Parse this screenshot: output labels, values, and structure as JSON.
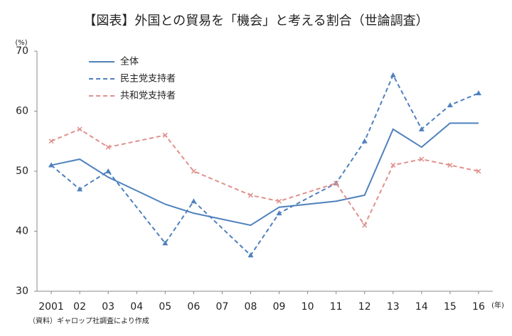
{
  "chart_data": {
    "type": "line",
    "title": "【図表】外国との貿易を「機会」と考える割合（世論調査）",
    "y_unit": "(%)",
    "x_unit": "(年)",
    "source": "（資料）ギャロップ社調査により作成",
    "xlim": [
      2000.5,
      2016.5
    ],
    "xticks": [
      {
        "value": 2001,
        "label": "2001"
      },
      {
        "value": 2002,
        "label": "02"
      },
      {
        "value": 2003,
        "label": "03"
      },
      {
        "value": 2004,
        "label": "04"
      },
      {
        "value": 2005,
        "label": "05"
      },
      {
        "value": 2006,
        "label": "06"
      },
      {
        "value": 2007,
        "label": "07"
      },
      {
        "value": 2008,
        "label": "08"
      },
      {
        "value": 2009,
        "label": "09"
      },
      {
        "value": 2010,
        "label": "10"
      },
      {
        "value": 2011,
        "label": "11"
      },
      {
        "value": 2012,
        "label": "12"
      },
      {
        "value": 2013,
        "label": "13"
      },
      {
        "value": 2014,
        "label": "14"
      },
      {
        "value": 2015,
        "label": "15"
      },
      {
        "value": 2016,
        "label": "16"
      }
    ],
    "ylim": [
      30,
      70
    ],
    "yticks": [
      30,
      40,
      50,
      60,
      70
    ],
    "grid": false,
    "legend": "top-left",
    "series": [
      {
        "name": "全体",
        "color": "#4f81bd",
        "dash": false,
        "marker": "none",
        "x": [
          2001,
          2002,
          2003,
          2005,
          2006,
          2008,
          2009,
          2011,
          2012,
          2013,
          2014,
          2015,
          2016
        ],
        "values": [
          51,
          52,
          49,
          44.5,
          43,
          41,
          44,
          45,
          46,
          57,
          54,
          58,
          58
        ]
      },
      {
        "name": "民主党支持者",
        "color": "#4f81bd",
        "dash": true,
        "marker": "triangle",
        "x": [
          2001,
          2002,
          2003,
          2005,
          2006,
          2008,
          2009,
          2011,
          2012,
          2013,
          2014,
          2015,
          2016
        ],
        "values": [
          51,
          47,
          50,
          38,
          45,
          36,
          43,
          48,
          55,
          66,
          57,
          61,
          63
        ]
      },
      {
        "name": "共和党支持者",
        "color": "#e0918c",
        "dash": true,
        "marker": "cross",
        "x": [
          2001,
          2002,
          2003,
          2005,
          2006,
          2008,
          2009,
          2011,
          2012,
          2013,
          2014,
          2015,
          2016
        ],
        "values": [
          55,
          57,
          54,
          56,
          50,
          46,
          45,
          48,
          41,
          51,
          52,
          51,
          50
        ]
      }
    ]
  }
}
